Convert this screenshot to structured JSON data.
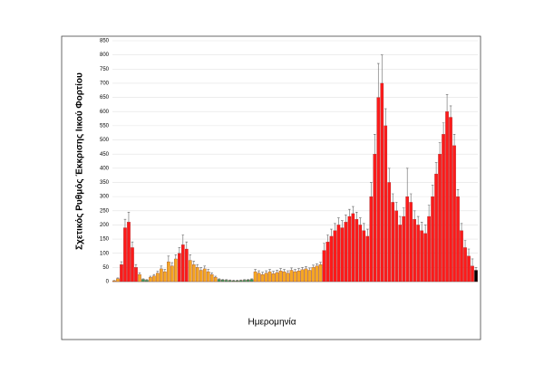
{
  "chart_data": {
    "type": "bar",
    "y_label": "Σχετικός Ρυθμός Έκκρισης Ιικού Φορτίου",
    "x_label": "Ημερομηνία",
    "ylim": [
      0,
      850
    ],
    "yticks": [
      0,
      50,
      100,
      150,
      200,
      250,
      300,
      350,
      400,
      450,
      500,
      550,
      600,
      650,
      700,
      750,
      800,
      850
    ],
    "grid": true,
    "values": [
      3,
      10,
      60,
      190,
      210,
      120,
      50,
      25,
      8,
      5,
      15,
      20,
      30,
      45,
      35,
      70,
      55,
      80,
      100,
      130,
      115,
      75,
      60,
      50,
      40,
      45,
      35,
      25,
      15,
      8,
      6,
      5,
      4,
      3,
      3,
      4,
      5,
      6,
      8,
      35,
      30,
      25,
      30,
      35,
      28,
      32,
      38,
      35,
      30,
      40,
      35,
      38,
      42,
      45,
      40,
      50,
      55,
      60,
      110,
      140,
      160,
      180,
      200,
      190,
      210,
      230,
      240,
      220,
      200,
      180,
      160,
      300,
      450,
      650,
      700,
      550,
      350,
      280,
      250,
      200,
      230,
      300,
      280,
      220,
      200,
      180,
      170,
      230,
      300,
      380,
      450,
      520,
      600,
      580,
      480,
      300,
      180,
      120,
      90,
      55,
      40
    ],
    "errors": [
      1,
      3,
      10,
      30,
      35,
      20,
      10,
      6,
      2,
      2,
      4,
      5,
      6,
      10,
      8,
      20,
      12,
      15,
      20,
      35,
      25,
      20,
      12,
      10,
      10,
      10,
      8,
      6,
      4,
      2,
      2,
      2,
      2,
      2,
      2,
      2,
      2,
      2,
      2,
      8,
      8,
      8,
      8,
      8,
      8,
      8,
      8,
      8,
      8,
      8,
      8,
      8,
      8,
      8,
      8,
      8,
      8,
      8,
      25,
      25,
      25,
      25,
      25,
      25,
      25,
      25,
      25,
      25,
      25,
      25,
      25,
      50,
      70,
      120,
      100,
      60,
      50,
      30,
      30,
      30,
      30,
      100,
      30,
      30,
      30,
      30,
      30,
      40,
      40,
      40,
      40,
      40,
      60,
      40,
      40,
      25,
      25,
      25,
      25,
      25,
      10
    ],
    "colors": [
      "#f5a623",
      "#f5a623",
      "#ff1a1a",
      "#ff1a1a",
      "#ff1a1a",
      "#ff1a1a",
      "#ff1a1a",
      "#f5a623",
      "#3a9a5c",
      "#3a9a5c",
      "#f5a623",
      "#f5a623",
      "#f5a623",
      "#f5a623",
      "#f5a623",
      "#f5a623",
      "#f5a623",
      "#f5a623",
      "#ff1a1a",
      "#ff1a1a",
      "#ff1a1a",
      "#f5a623",
      "#f5a623",
      "#f5a623",
      "#f5a623",
      "#f5a623",
      "#f5a623",
      "#f5a623",
      "#f5a623",
      "#3a9a5c",
      "#3a9a5c",
      "#3a9a5c",
      "#3a9a5c",
      "#3a9a5c",
      "#3a9a5c",
      "#3a9a5c",
      "#3a9a5c",
      "#3a9a5c",
      "#3a9a5c",
      "#f5a623",
      "#f5a623",
      "#f5a623",
      "#f5a623",
      "#f5a623",
      "#f5a623",
      "#f5a623",
      "#f5a623",
      "#f5a623",
      "#f5a623",
      "#f5a623",
      "#f5a623",
      "#f5a623",
      "#f5a623",
      "#f5a623",
      "#f5a623",
      "#f5a623",
      "#f5a623",
      "#f5a623",
      "#ff1a1a",
      "#ff1a1a",
      "#ff1a1a",
      "#ff1a1a",
      "#ff1a1a",
      "#ff1a1a",
      "#ff1a1a",
      "#ff1a1a",
      "#ff1a1a",
      "#ff1a1a",
      "#ff1a1a",
      "#ff1a1a",
      "#ff1a1a",
      "#ff1a1a",
      "#ff1a1a",
      "#ff1a1a",
      "#ff1a1a",
      "#ff1a1a",
      "#ff1a1a",
      "#ff1a1a",
      "#ff1a1a",
      "#ff1a1a",
      "#ff1a1a",
      "#ff1a1a",
      "#ff1a1a",
      "#ff1a1a",
      "#ff1a1a",
      "#ff1a1a",
      "#ff1a1a",
      "#ff1a1a",
      "#ff1a1a",
      "#ff1a1a",
      "#ff1a1a",
      "#ff1a1a",
      "#ff1a1a",
      "#ff1a1a",
      "#ff1a1a",
      "#ff1a1a",
      "#ff1a1a",
      "#ff1a1a",
      "#ff1a1a",
      "#ff1a1a"
    ]
  }
}
